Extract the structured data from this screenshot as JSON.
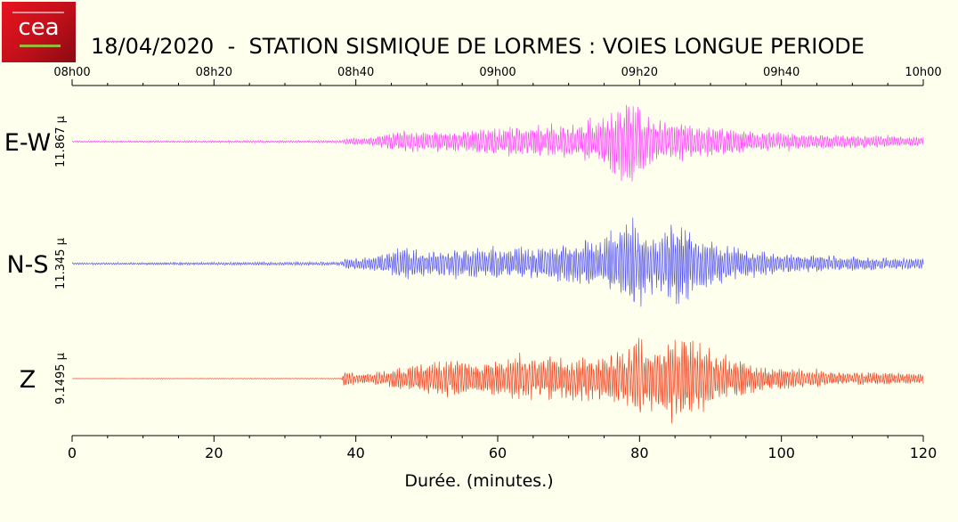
{
  "title": "18/04/2020  -  STATION SISMIQUE DE LORMES : VOIES LONGUE PERIODE",
  "logo": {
    "text": "cea"
  },
  "chart_data": {
    "type": "line",
    "xlabel": "Durée.  (minutes.)",
    "xlim": [
      0,
      120
    ],
    "x_ticks": [
      0,
      20,
      40,
      60,
      80,
      100,
      120
    ],
    "top_axis_ticks": [
      "08h00",
      "08h20",
      "08h40",
      "09h00",
      "09h20",
      "09h40",
      "10h00"
    ],
    "grid": false,
    "series": [
      {
        "name": "E-W",
        "scale_label": "11.867 µ",
        "color": "#ff44ff",
        "amplitude_envelope": [
          [
            0,
            0.02
          ],
          [
            38,
            0.03
          ],
          [
            38.5,
            0.08
          ],
          [
            42,
            0.1
          ],
          [
            48,
            0.3
          ],
          [
            49,
            0.22
          ],
          [
            55,
            0.25
          ],
          [
            60,
            0.32
          ],
          [
            65,
            0.38
          ],
          [
            70,
            0.4
          ],
          [
            74,
            0.5
          ],
          [
            76,
            0.8
          ],
          [
            78,
            0.95
          ],
          [
            79,
            1.0
          ],
          [
            80,
            0.8
          ],
          [
            82,
            0.55
          ],
          [
            85,
            0.45
          ],
          [
            90,
            0.35
          ],
          [
            95,
            0.25
          ],
          [
            100,
            0.2
          ],
          [
            110,
            0.15
          ],
          [
            120,
            0.12
          ]
        ]
      },
      {
        "name": "N-S",
        "scale_label": "11.345 µ",
        "color": "#5555ee",
        "amplitude_envelope": [
          [
            0,
            0.02
          ],
          [
            38,
            0.04
          ],
          [
            38.5,
            0.1
          ],
          [
            42,
            0.15
          ],
          [
            48,
            0.38
          ],
          [
            49,
            0.25
          ],
          [
            55,
            0.28
          ],
          [
            60,
            0.3
          ],
          [
            65,
            0.35
          ],
          [
            70,
            0.4
          ],
          [
            75,
            0.55
          ],
          [
            78,
            0.85
          ],
          [
            79,
            1.0
          ],
          [
            80,
            0.75
          ],
          [
            83,
            0.6
          ],
          [
            85,
            0.95
          ],
          [
            86,
            0.9
          ],
          [
            88,
            0.6
          ],
          [
            92,
            0.4
          ],
          [
            95,
            0.3
          ],
          [
            100,
            0.22
          ],
          [
            110,
            0.15
          ],
          [
            120,
            0.12
          ]
        ]
      },
      {
        "name": "Z",
        "scale_label": "9.1495 µ",
        "color": "#ee4422",
        "amplitude_envelope": [
          [
            0,
            0.005
          ],
          [
            38,
            0.01
          ],
          [
            38.3,
            0.2
          ],
          [
            40,
            0.12
          ],
          [
            44,
            0.18
          ],
          [
            48,
            0.3
          ],
          [
            53,
            0.45
          ],
          [
            58,
            0.35
          ],
          [
            63,
            0.5
          ],
          [
            66,
            0.55
          ],
          [
            70,
            0.5
          ],
          [
            75,
            0.55
          ],
          [
            78,
            0.7
          ],
          [
            80,
            1.0
          ],
          [
            82,
            0.75
          ],
          [
            85,
            0.95
          ],
          [
            87,
            1.0
          ],
          [
            89,
            0.8
          ],
          [
            92,
            0.5
          ],
          [
            95,
            0.35
          ],
          [
            100,
            0.25
          ],
          [
            110,
            0.15
          ],
          [
            120,
            0.12
          ]
        ]
      }
    ]
  }
}
